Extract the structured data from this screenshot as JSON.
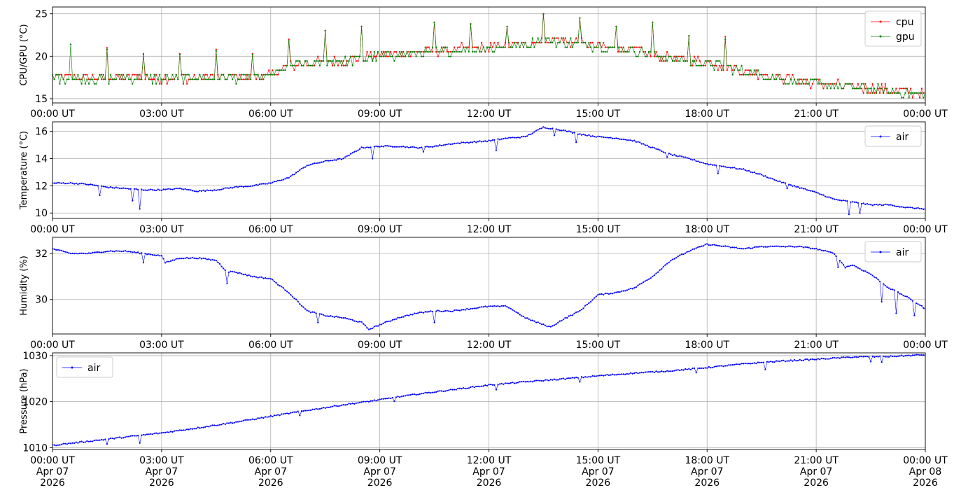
{
  "chart_data": [
    {
      "type": "line",
      "ylabel": "CPU/GPU (°C)",
      "ylim": [
        14.5,
        25.8
      ],
      "yticks": [
        15,
        20,
        25
      ],
      "ytick_labels": [
        "15",
        "20",
        "25"
      ],
      "xlim": [
        0,
        24
      ],
      "xticks": [
        0,
        3,
        6,
        9,
        12,
        15,
        18,
        21,
        24
      ],
      "xtick_labels": [
        "00:00 UT",
        "03:00 UT",
        "06:00 UT",
        "09:00 UT",
        "12:00 UT",
        "15:00 UT",
        "18:00 UT",
        "21:00 UT",
        "00:00 UT"
      ],
      "grid": true,
      "legend": "top-right",
      "series": [
        {
          "name": "cpu",
          "color": "#ff0000",
          "x": [
            0,
            1,
            2,
            3,
            4,
            5,
            6,
            6.5,
            7,
            8,
            9,
            10,
            11,
            12,
            13,
            13.5,
            14,
            15,
            16,
            17,
            18,
            18.5,
            19,
            20,
            21,
            22,
            23,
            24
          ],
          "y": [
            17.6,
            17.4,
            17.6,
            17.4,
            17.5,
            17.5,
            17.7,
            18.9,
            19.2,
            19.5,
            20.1,
            20.4,
            20.8,
            21.0,
            21.5,
            22.0,
            21.8,
            21.3,
            20.7,
            19.8,
            19.2,
            18.9,
            18.3,
            17.5,
            16.8,
            16.4,
            16.0,
            15.6
          ],
          "spikes": [
            [
              1.5,
              21.0
            ],
            [
              2.5,
              20.3
            ],
            [
              3.5,
              20.3
            ],
            [
              4.5,
              20.8
            ],
            [
              5.5,
              20.3
            ],
            [
              6.5,
              22.0
            ],
            [
              7.5,
              23.0
            ],
            [
              8.5,
              23.5
            ],
            [
              10.5,
              24.0
            ],
            [
              11.5,
              23.8
            ],
            [
              12.5,
              23.5
            ],
            [
              13.5,
              25.0
            ],
            [
              14.5,
              24.5
            ],
            [
              15.5,
              23.5
            ],
            [
              16.5,
              24.0
            ],
            [
              17.5,
              22.4
            ],
            [
              18.5,
              22.3
            ]
          ]
        },
        {
          "name": "gpu",
          "color": "#008000",
          "x": [
            0,
            1,
            2,
            3,
            4,
            5,
            6,
            6.5,
            7,
            8,
            9,
            10,
            11,
            12,
            13,
            13.5,
            14,
            15,
            16,
            17,
            18,
            18.5,
            19,
            20,
            21,
            22,
            23,
            24
          ],
          "y": [
            17.5,
            17.3,
            17.5,
            17.3,
            17.4,
            17.4,
            17.6,
            18.8,
            19.1,
            19.4,
            20.0,
            20.3,
            20.7,
            20.9,
            21.4,
            21.9,
            21.7,
            21.2,
            20.6,
            19.7,
            19.1,
            18.8,
            18.2,
            17.4,
            16.7,
            16.3,
            15.9,
            15.5
          ],
          "spikes": [
            [
              0.5,
              21.4
            ],
            [
              1.5,
              20.8
            ],
            [
              2.5,
              20.2
            ],
            [
              3.5,
              20.2
            ],
            [
              4.5,
              20.6
            ],
            [
              5.5,
              20.2
            ],
            [
              6.5,
              21.8
            ],
            [
              7.5,
              23.0
            ],
            [
              8.5,
              23.5
            ],
            [
              10.5,
              24.0
            ],
            [
              11.5,
              23.8
            ],
            [
              12.5,
              23.5
            ],
            [
              13.5,
              24.9
            ],
            [
              14.5,
              24.5
            ],
            [
              15.5,
              23.5
            ],
            [
              16.5,
              24.0
            ],
            [
              17.5,
              22.4
            ],
            [
              18.5,
              22.0
            ]
          ]
        }
      ]
    },
    {
      "type": "line",
      "ylabel": "Temperature (°C)",
      "ylim": [
        9.6,
        16.7
      ],
      "yticks": [
        10,
        12,
        14,
        16
      ],
      "ytick_labels": [
        "10",
        "12",
        "14",
        "16"
      ],
      "xlim": [
        0,
        24
      ],
      "xticks": [
        0,
        3,
        6,
        9,
        12,
        15,
        18,
        21,
        24
      ],
      "xtick_labels": [
        "00:00 UT",
        "03:00 UT",
        "06:00 UT",
        "09:00 UT",
        "12:00 UT",
        "15:00 UT",
        "18:00 UT",
        "21:00 UT",
        "00:00 UT"
      ],
      "grid": true,
      "legend": "top-right",
      "series": [
        {
          "name": "air",
          "color": "#0000ff",
          "x": [
            0,
            0.5,
            1,
            1.5,
            2,
            2.5,
            3,
            3.5,
            4,
            4.5,
            5,
            5.5,
            6,
            6.5,
            7,
            7.5,
            8,
            8.5,
            9,
            9.5,
            10,
            10.5,
            11,
            11.5,
            12,
            12.5,
            13,
            13.5,
            14,
            14.5,
            15,
            15.5,
            16,
            16.5,
            17,
            17.5,
            18,
            18.5,
            19,
            19.5,
            20,
            20.5,
            21,
            21.5,
            22,
            22.5,
            23,
            23.5,
            24
          ],
          "y": [
            12.2,
            12.2,
            12.1,
            11.9,
            11.8,
            11.7,
            11.7,
            11.8,
            11.6,
            11.7,
            11.9,
            12.0,
            12.2,
            12.6,
            13.5,
            13.8,
            14.0,
            14.8,
            14.9,
            14.9,
            14.8,
            14.9,
            15.1,
            15.2,
            15.3,
            15.5,
            15.6,
            16.3,
            16.1,
            15.8,
            15.6,
            15.5,
            15.3,
            14.8,
            14.3,
            14.0,
            13.6,
            13.4,
            13.2,
            12.8,
            12.3,
            11.9,
            11.5,
            11.0,
            10.8,
            10.6,
            10.6,
            10.4,
            10.3
          ],
          "dips": [
            [
              1.3,
              11.3
            ],
            [
              2.2,
              10.9
            ],
            [
              2.4,
              10.3
            ],
            [
              7.0,
              13.5
            ],
            [
              8.8,
              14.0
            ],
            [
              10.2,
              14.5
            ],
            [
              12.2,
              14.6
            ],
            [
              13.8,
              15.7
            ],
            [
              14.4,
              15.2
            ],
            [
              16.9,
              14.1
            ],
            [
              18.3,
              12.9
            ],
            [
              20.2,
              11.8
            ],
            [
              21.9,
              9.9
            ],
            [
              22.2,
              10.0
            ]
          ]
        }
      ]
    },
    {
      "type": "line",
      "ylabel": "Humidity (%)",
      "ylim": [
        28.5,
        32.7
      ],
      "yticks": [
        30,
        32
      ],
      "ytick_labels": [
        "30",
        "32"
      ],
      "xlim": [
        0,
        24
      ],
      "xticks": [
        0,
        3,
        6,
        9,
        12,
        15,
        18,
        21,
        24
      ],
      "xtick_labels": [
        "00:00 UT",
        "03:00 UT",
        "06:00 UT",
        "09:00 UT",
        "12:00 UT",
        "15:00 UT",
        "18:00 UT",
        "21:00 UT",
        "00:00 UT"
      ],
      "grid": true,
      "legend": "top-right",
      "series": [
        {
          "name": "air",
          "color": "#0000ff",
          "x": [
            0,
            0.5,
            1,
            1.5,
            2,
            2.5,
            3,
            3.1,
            3.5,
            4,
            4.5,
            4.8,
            5,
            5.5,
            6,
            6.5,
            7,
            7.5,
            8,
            8.5,
            8.7,
            9,
            9.5,
            10,
            10.5,
            11,
            11.5,
            12,
            12.5,
            13,
            13.5,
            13.7,
            14,
            14.5,
            15,
            15.5,
            16,
            16.5,
            17,
            17.5,
            18,
            18.5,
            19,
            19.5,
            20,
            20.5,
            21,
            21.5,
            21.8,
            22,
            22.5,
            23,
            23.5,
            24
          ],
          "y": [
            32.2,
            32.0,
            32.0,
            32.1,
            32.1,
            32.0,
            31.9,
            31.6,
            31.8,
            31.8,
            31.7,
            31.2,
            31.2,
            31.0,
            30.9,
            30.3,
            29.5,
            29.3,
            29.2,
            29.0,
            28.7,
            28.9,
            29.2,
            29.4,
            29.5,
            29.5,
            29.6,
            29.7,
            29.7,
            29.2,
            28.9,
            28.8,
            29.1,
            29.5,
            30.2,
            30.3,
            30.5,
            31.0,
            31.7,
            32.1,
            32.4,
            32.3,
            32.2,
            32.3,
            32.3,
            32.3,
            32.2,
            32.0,
            31.4,
            31.5,
            31.1,
            30.5,
            30.1,
            29.6
          ],
          "dips": [
            [
              2.5,
              31.6
            ],
            [
              4.8,
              30.7
            ],
            [
              7.3,
              29.0
            ],
            [
              10.5,
              29.0
            ],
            [
              13.3,
              29.0
            ],
            [
              21.6,
              31.4
            ],
            [
              22.8,
              29.9
            ],
            [
              23.2,
              29.4
            ],
            [
              23.7,
              29.3
            ]
          ]
        }
      ]
    },
    {
      "type": "line",
      "ylabel": "Pressure (hPa)",
      "ylim": [
        1009.6,
        1030.6
      ],
      "yticks": [
        1010,
        1020,
        1030
      ],
      "ytick_labels": [
        "1010",
        "1020",
        "1030"
      ],
      "xlim": [
        0,
        24
      ],
      "xticks": [
        0,
        3,
        6,
        9,
        12,
        15,
        18,
        21,
        24
      ],
      "xtick_labels": [
        "00:00 UT\nApr 07\n2026",
        "03:00 UT\nApr 07\n2026",
        "06:00 UT\nApr 07\n2026",
        "09:00 UT\nApr 07\n2026",
        "12:00 UT\nApr 07\n2026",
        "15:00 UT\nApr 07\n2026",
        "18:00 UT\nApr 07\n2026",
        "21:00 UT\nApr 07\n2026",
        "00:00 UT\nApr 08\n2026"
      ],
      "grid": true,
      "legend": "top-left",
      "series": [
        {
          "name": "air",
          "color": "#0000ff",
          "x": [
            0,
            1,
            2,
            3,
            4,
            5,
            6,
            7,
            8,
            9,
            10,
            11,
            12,
            13,
            14,
            15,
            16,
            17,
            18,
            19,
            20,
            21,
            22,
            23,
            24
          ],
          "y": [
            1010.5,
            1011.4,
            1012.3,
            1013.2,
            1014.3,
            1015.5,
            1016.8,
            1018.1,
            1019.3,
            1020.4,
            1021.6,
            1022.6,
            1023.6,
            1024.3,
            1024.9,
            1025.6,
            1026.2,
            1026.7,
            1027.4,
            1028.2,
            1028.8,
            1029.2,
            1029.7,
            1029.8,
            1030.2
          ],
          "dips": [
            [
              1.5,
              1010.8
            ],
            [
              2.4,
              1011.0
            ],
            [
              6.8,
              1017.0
            ],
            [
              9.4,
              1020.1
            ],
            [
              12.2,
              1022.6
            ],
            [
              14.5,
              1024.3
            ],
            [
              17.7,
              1026.3
            ],
            [
              19.6,
              1027.0
            ],
            [
              22.5,
              1028.7
            ],
            [
              22.8,
              1028.6
            ]
          ]
        }
      ]
    }
  ]
}
